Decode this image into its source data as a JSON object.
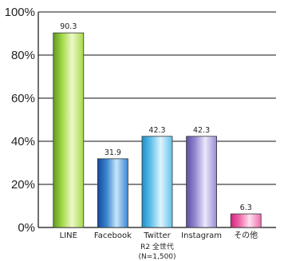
{
  "chart_data": {
    "type": "bar",
    "title": "",
    "xlabel": "",
    "ylabel": "",
    "ylim": [
      0,
      100
    ],
    "yticks": [
      0,
      20,
      40,
      60,
      80,
      100
    ],
    "ytick_labels": [
      "0%",
      "20%",
      "40%",
      "60%",
      "80%",
      "100%"
    ],
    "categories": [
      "LINE",
      "Facebook",
      "Twitter",
      "Instagram",
      "その他"
    ],
    "values": [
      90.3,
      31.9,
      42.3,
      42.3,
      6.3
    ],
    "value_labels": [
      "90.3",
      "31.9",
      "42.3",
      "42.3",
      "6.3"
    ],
    "grid": true,
    "note_lines": [
      "R2 全世代",
      "(N=1,500)"
    ],
    "colors": {
      "LINE": [
        "#5f9a1f",
        "#a5d94a",
        "#eef9c8"
      ],
      "Facebook": [
        "#164a9c",
        "#3a86d0",
        "#c7e5fb"
      ],
      "Twitter": [
        "#1d8ec8",
        "#62c1ec",
        "#e0f4fd"
      ],
      "Instagram": [
        "#5a4ea3",
        "#958bd3",
        "#ece8fb"
      ],
      "その他": [
        "#d2237d",
        "#f06aab",
        "#fde0ef"
      ]
    }
  }
}
